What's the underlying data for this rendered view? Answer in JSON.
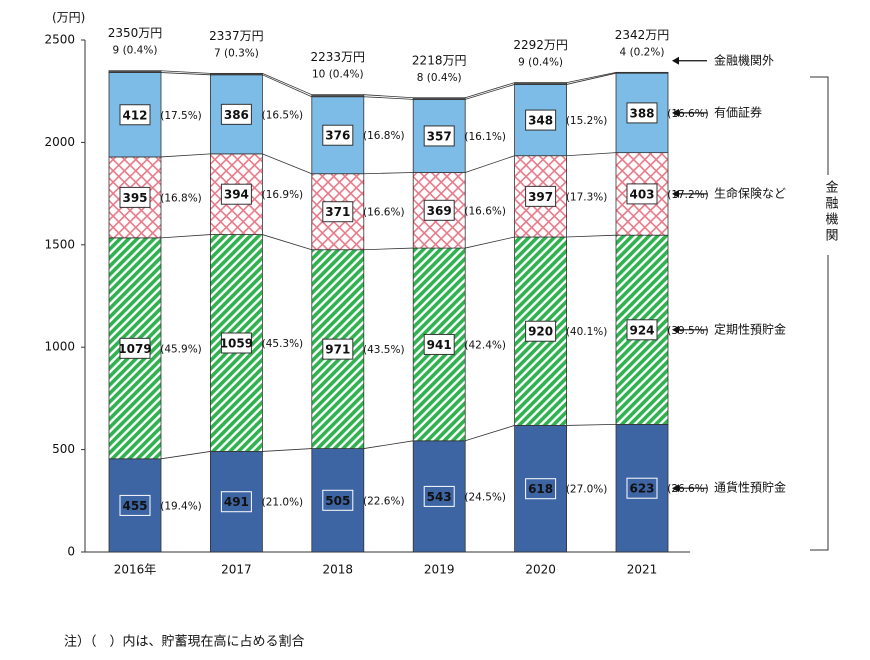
{
  "chart_data": {
    "type": "stacked_bar",
    "y_axis_label": "(万円)",
    "categories": [
      "2016年",
      "2017",
      "2018",
      "2019",
      "2020",
      "2021"
    ],
    "series": [
      {
        "name": "通貨性預貯金",
        "color": "#3d64a3",
        "values": [
          455,
          491,
          505,
          543,
          618,
          623
        ],
        "percent_labels": [
          "(19.4%)",
          "(21.0%)",
          "(22.6%)",
          "(24.5%)",
          "(27.0%)",
          "(26.6%)"
        ]
      },
      {
        "name": "定期性預貯金",
        "color": "#2fb24f",
        "values": [
          1079,
          1059,
          971,
          941,
          920,
          924
        ],
        "percent_labels": [
          "(45.9%)",
          "(45.3%)",
          "(43.5%)",
          "(42.4%)",
          "(40.1%)",
          "(39.5%)"
        ]
      },
      {
        "name": "生命保険など",
        "color": "#e97a8a",
        "values": [
          395,
          394,
          371,
          369,
          397,
          403
        ],
        "percent_labels": [
          "(16.8%)",
          "(16.9%)",
          "(16.6%)",
          "(16.6%)",
          "(17.3%)",
          "(17.2%)"
        ]
      },
      {
        "name": "有価証券",
        "color": "#7cbce6",
        "values": [
          412,
          386,
          376,
          357,
          348,
          388
        ],
        "percent_labels": [
          "(17.5%)",
          "(16.5%)",
          "(16.8%)",
          "(16.1%)",
          "(15.2%)",
          "(16.6%)"
        ]
      },
      {
        "name": "金融機関外",
        "color": "#555555",
        "values": [
          9,
          7,
          10,
          8,
          9,
          4
        ],
        "value_labels": [
          "9 (0.4%)",
          "7 (0.3%)",
          "10 (0.4%)",
          "8 (0.4%)",
          "9 (0.4%)",
          "4 (0.2%)"
        ]
      }
    ],
    "totals": [
      2350,
      2337,
      2233,
      2218,
      2292,
      2342
    ],
    "total_labels": [
      "2350万円",
      "2337万円",
      "2233万円",
      "2218万円",
      "2292万円",
      "2342万円"
    ],
    "bracket_label": "金融機関",
    "ylim": [
      0,
      2500
    ],
    "yticks": [
      0,
      500,
      1000,
      1500,
      2000,
      2500
    ],
    "note": "注）（　）内は、貯蓄現在高に占める割合"
  }
}
